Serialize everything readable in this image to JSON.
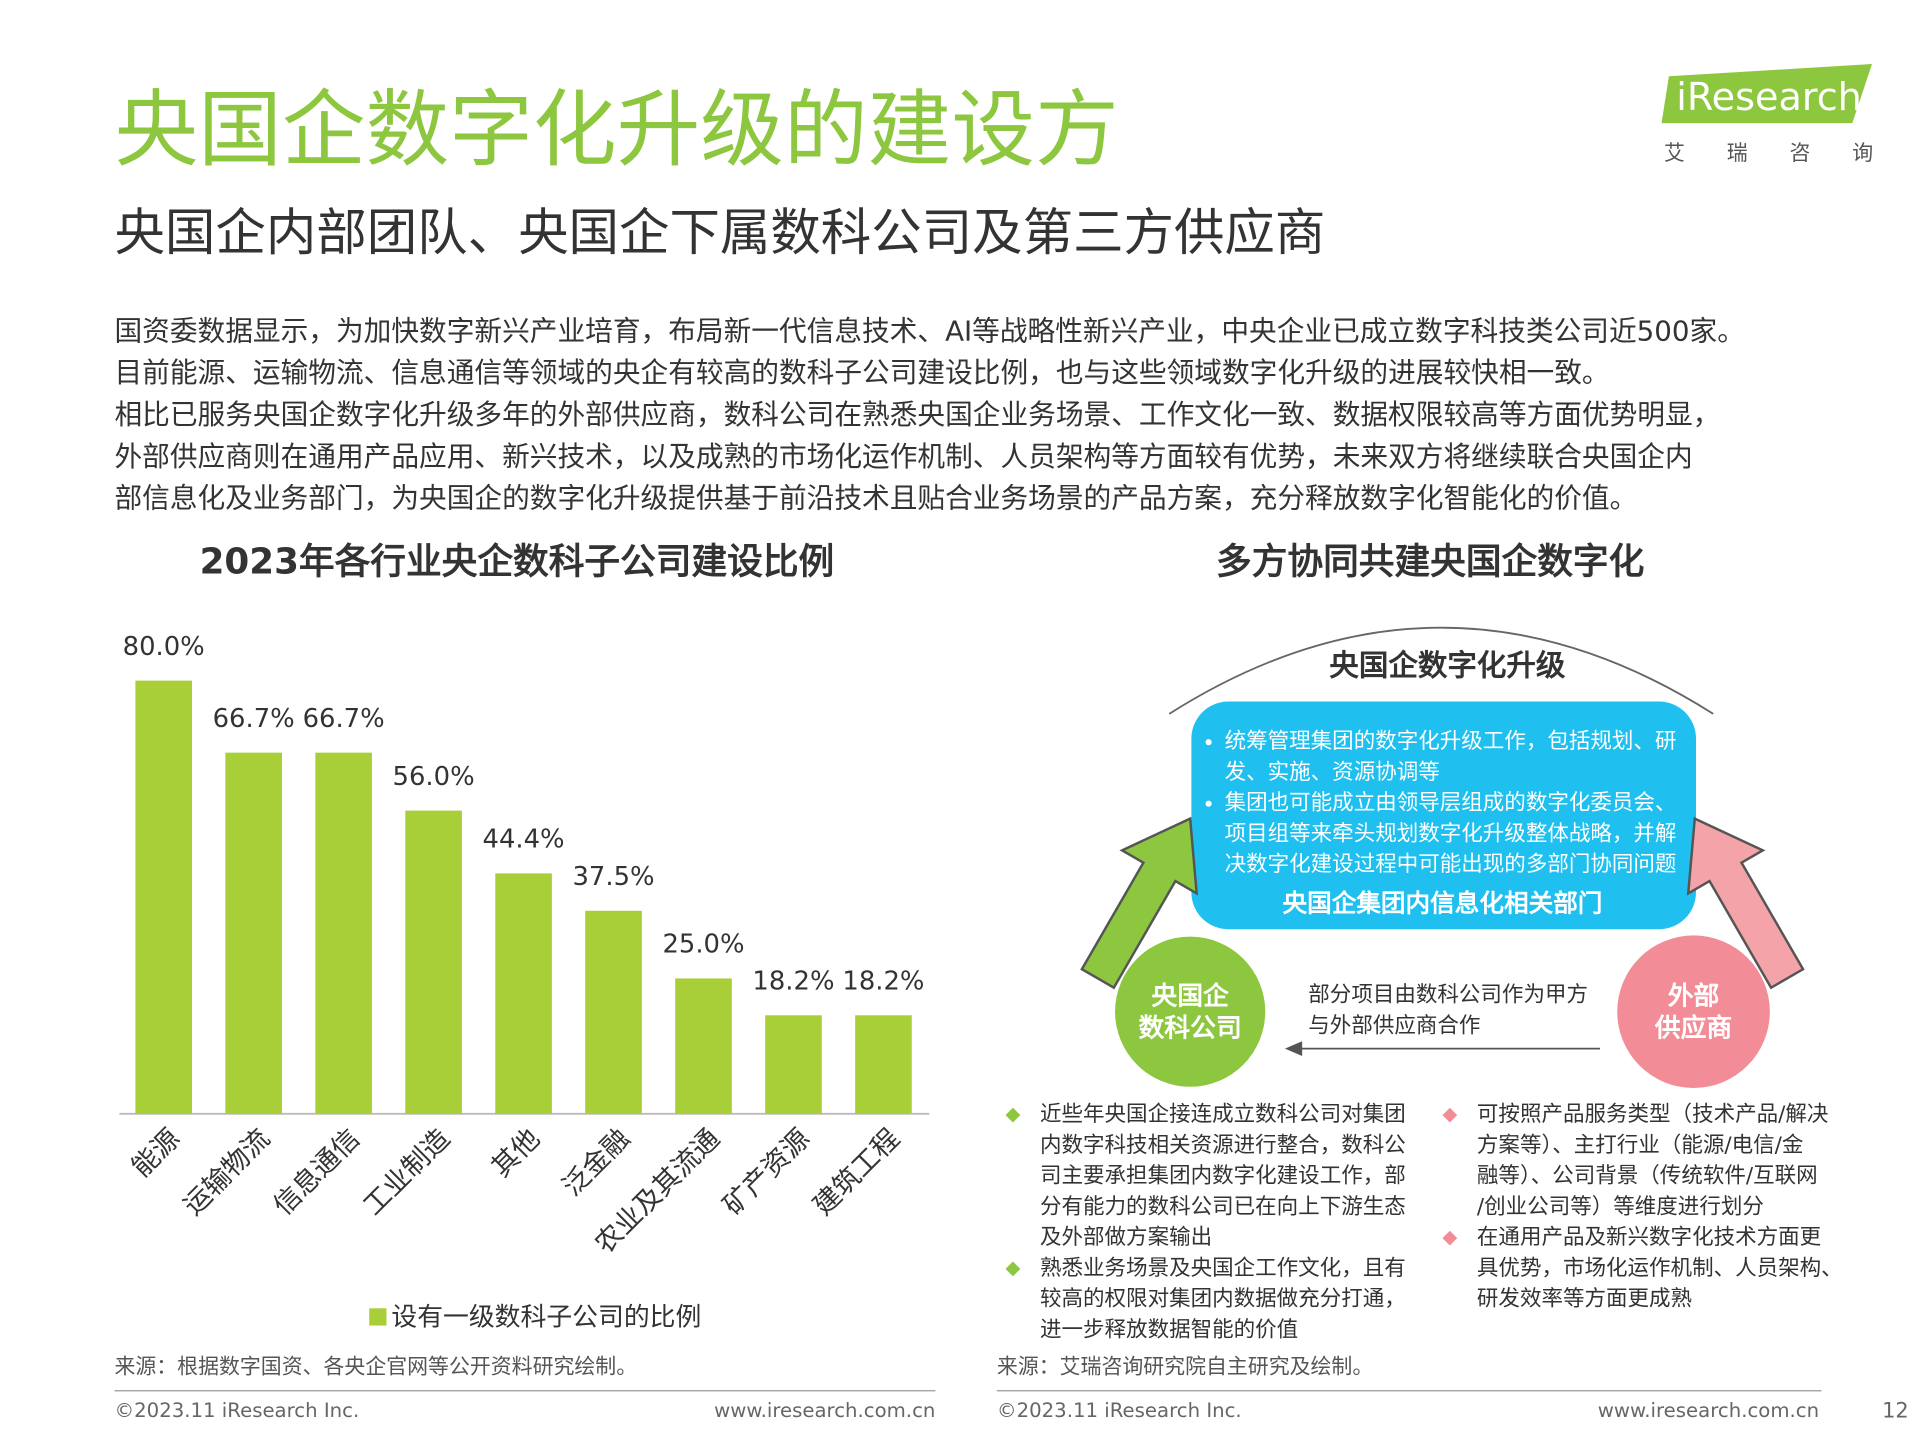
{
  "header": {
    "title": "央国企数字化升级的建设方",
    "subtitle": "央国企内部团队、央国企下属数科公司及第三方供应商",
    "logo": "iResearch",
    "logo_cn": "艾瑞咨询"
  },
  "body": {
    "lines": [
      "国资委数据显示，为加快数字新兴产业培育，布局新一代信息技术、AI等战略性新兴产业，中央企业已成立数字科技类公司近500家。",
      "目前能源、运输物流、信息通信等领域的央企有较高的数科子公司建设比例，也与这些领域数字化升级的进展较快相一致。",
      "相比已服务央国企数字化升级多年的外部供应商，数科公司在熟悉央国企业务场景、工作文化一致、数据权限较高等方面优势明显，",
      "外部供应商则在通用产品应用、新兴技术，以及成熟的市场化运作机制、人员架构等方面较有优势，未来双方将继续联合央国企内",
      "部信息化及业务部门，为央国企的数字化升级提供基于前沿技术且贴合业务场景的产品方案，充分释放数字化智能化的价值。"
    ]
  },
  "chart_data": {
    "type": "bar",
    "title": "2023年各行业央企数科子公司建设比例",
    "categories": [
      "能源",
      "运输物流",
      "信息通信",
      "工业制造",
      "其他",
      "泛金融",
      "农业及其流通",
      "矿产资源",
      "建筑工程"
    ],
    "series": [
      {
        "name": "设有一级数科子公司的比例",
        "color": "#a9cf38",
        "values": [
          80.0,
          66.7,
          66.7,
          56.0,
          44.4,
          37.5,
          25.0,
          18.2,
          18.2
        ],
        "value_labels": [
          "80.0%",
          "66.7%",
          "66.7%",
          "56.0%",
          "44.4%",
          "37.5%",
          "25.0%",
          "18.2%",
          "18.2%"
        ]
      }
    ],
    "source": "来源：根据数字国资、各央企官网等公开资料研究绘制。"
  },
  "diagram": {
    "title": "多方协同共建央国企数字化",
    "arc_label": "央国企数字化升级",
    "center_box": {
      "lines": [
        "统筹管理集团的数字化升级工作，包括规划、研",
        "发、实施、资源协调等",
        "集团也可能成立由领导层组成的数字化委员会、",
        "项目组等来牵头规划数字化升级整体战略，并解",
        "决数字化建设过程中可能出现的多部门协同问题"
      ],
      "bullet_lines": [
        0,
        2
      ],
      "label": "央国企集团内信息化相关部门"
    },
    "left_node": [
      "央国企",
      "数科公司"
    ],
    "right_node": [
      "外部",
      "供应商"
    ],
    "middle_note": [
      "部分项目由数科公司作为甲方",
      "与外部供应商合作"
    ],
    "left_notes": [
      [
        "近些年央国企接连成立数科公司对集团",
        "内数字科技相关资源进行整合，数科公",
        "司主要承担集团内数字化建设工作，部",
        "分有能力的数科公司已在向上下游生态",
        "及外部做方案输出"
      ],
      [
        "熟悉业务场景及央国企工作文化，且有",
        "较高的权限对集团内数据做充分打通，",
        "进一步释放数据智能的价值"
      ]
    ],
    "right_notes": [
      [
        "可按照产品服务类型（技术产品/解决",
        "方案等）、主打行业（能源/电信/金",
        "融等）、公司背景（传统软件/互联网",
        "/创业公司等）等维度进行划分"
      ],
      [
        "在通用产品及新兴数字化技术方面更",
        "具优势，市场化运作机制、人员架构、",
        "研发效率等方面更成熟"
      ]
    ],
    "source": "来源：艾瑞咨询研究院自主研究及绘制。"
  },
  "footer": {
    "copyright_left": "©2023.11 iResearch Inc.",
    "url_left": "www.iresearch.com.cn",
    "copyright_right": "©2023.11 iResearch Inc.",
    "url_right": "www.iresearch.com.cn",
    "page": "12"
  }
}
